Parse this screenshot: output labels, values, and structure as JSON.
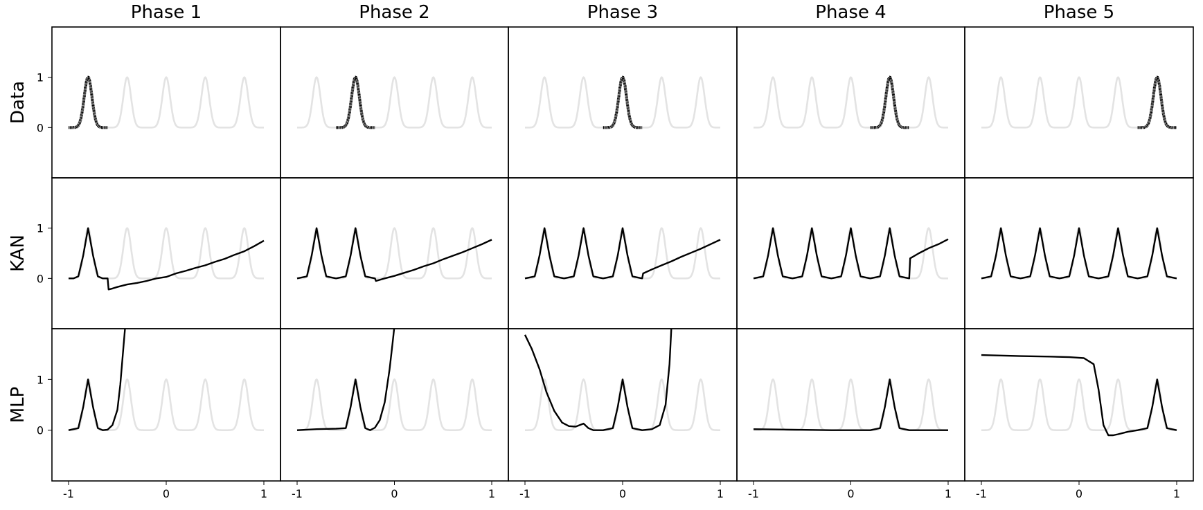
{
  "chart_data": {
    "type": "line",
    "columns": [
      "Phase 1",
      "Phase 2",
      "Phase 3",
      "Phase 4",
      "Phase 5"
    ],
    "rows": [
      "Data",
      "KAN",
      "MLP"
    ],
    "xlim": [
      -1,
      1
    ],
    "ylim": [
      -1,
      2
    ],
    "x_ticks": [
      -1,
      0,
      1
    ],
    "x_tick_labels": [
      "-1",
      "0",
      "1"
    ],
    "y_ticks": [
      0,
      1
    ],
    "y_tick_labels": [
      "0",
      "1"
    ],
    "peak_centers": [
      -0.8,
      -0.4,
      0.0,
      0.4,
      0.8
    ],
    "peak_width": 0.04,
    "colors": {
      "background_curve": "#e3e3e3",
      "foreground_curve": "#000000",
      "frame": "#000000"
    },
    "panels": [
      [
        {
          "style": "dots",
          "x": [
            -1.0,
            -0.95,
            -0.9,
            -0.85,
            -0.8,
            -0.75,
            -0.7,
            -0.65,
            -0.6
          ],
          "y": [
            0,
            0.0,
            0.04,
            0.46,
            1.0,
            0.46,
            0.04,
            0.0,
            0.0
          ]
        },
        {
          "style": "dots",
          "x": [
            -0.6,
            -0.55,
            -0.5,
            -0.45,
            -0.4,
            -0.35,
            -0.3,
            -0.25,
            -0.2
          ],
          "y": [
            0,
            0.0,
            0.04,
            0.46,
            1.0,
            0.46,
            0.04,
            0.0,
            0.0
          ]
        },
        {
          "style": "dots",
          "x": [
            -0.2,
            -0.15,
            -0.1,
            -0.05,
            0.0,
            0.05,
            0.1,
            0.15,
            0.2
          ],
          "y": [
            0,
            0.0,
            0.04,
            0.46,
            1.0,
            0.46,
            0.04,
            0.0,
            0.0
          ]
        },
        {
          "style": "dots",
          "x": [
            0.2,
            0.25,
            0.3,
            0.35,
            0.4,
            0.45,
            0.5,
            0.55,
            0.6
          ],
          "y": [
            0,
            0.0,
            0.04,
            0.46,
            1.0,
            0.46,
            0.04,
            0.0,
            0.0
          ]
        },
        {
          "style": "dots",
          "x": [
            0.6,
            0.65,
            0.7,
            0.75,
            0.8,
            0.85,
            0.9,
            0.95,
            1.0
          ],
          "y": [
            0,
            0.0,
            0.04,
            0.46,
            1.0,
            0.46,
            0.04,
            0.0,
            0.0
          ]
        }
      ],
      [
        {
          "style": "line",
          "x": [
            -1.0,
            -0.95,
            -0.9,
            -0.85,
            -0.8,
            -0.75,
            -0.7,
            -0.65,
            -0.6,
            -0.59,
            -0.55,
            -0.5,
            -0.4,
            -0.3,
            -0.2,
            -0.1,
            0.0,
            0.1,
            0.2,
            0.3,
            0.4,
            0.5,
            0.6,
            0.7,
            0.8,
            0.9,
            1.0
          ],
          "y": [
            0,
            0.0,
            0.04,
            0.46,
            1.0,
            0.46,
            0.04,
            0.0,
            0.0,
            -0.22,
            -0.2,
            -0.17,
            -0.12,
            -0.09,
            -0.05,
            0.0,
            0.03,
            0.1,
            0.15,
            0.21,
            0.26,
            0.33,
            0.39,
            0.47,
            0.54,
            0.64,
            0.75
          ]
        },
        {
          "style": "line",
          "x": [
            -1.0,
            -0.9,
            -0.85,
            -0.8,
            -0.75,
            -0.7,
            -0.6,
            -0.5,
            -0.45,
            -0.4,
            -0.35,
            -0.3,
            -0.2,
            -0.19,
            -0.1,
            0.0,
            0.1,
            0.2,
            0.3,
            0.4,
            0.5,
            0.6,
            0.7,
            0.8,
            0.9,
            1.0
          ],
          "y": [
            0,
            0.04,
            0.46,
            1.0,
            0.46,
            0.04,
            0.0,
            0.04,
            0.46,
            1.0,
            0.46,
            0.04,
            0.0,
            -0.05,
            0.0,
            0.05,
            0.11,
            0.17,
            0.24,
            0.3,
            0.38,
            0.45,
            0.52,
            0.6,
            0.68,
            0.77
          ]
        },
        {
          "style": "line",
          "x": [
            -1.0,
            -0.9,
            -0.85,
            -0.8,
            -0.75,
            -0.7,
            -0.6,
            -0.5,
            -0.45,
            -0.4,
            -0.35,
            -0.3,
            -0.2,
            -0.1,
            -0.05,
            0.0,
            0.05,
            0.1,
            0.2,
            0.21,
            0.3,
            0.4,
            0.5,
            0.6,
            0.7,
            0.8,
            0.9,
            1.0
          ],
          "y": [
            0,
            0.04,
            0.46,
            1.0,
            0.46,
            0.04,
            0.0,
            0.04,
            0.46,
            1.0,
            0.46,
            0.04,
            0.0,
            0.04,
            0.46,
            1.0,
            0.46,
            0.04,
            0.0,
            0.1,
            0.18,
            0.26,
            0.34,
            0.43,
            0.51,
            0.59,
            0.68,
            0.77
          ]
        },
        {
          "style": "line",
          "x": [
            -1.0,
            -0.9,
            -0.85,
            -0.8,
            -0.75,
            -0.7,
            -0.6,
            -0.5,
            -0.45,
            -0.4,
            -0.35,
            -0.3,
            -0.2,
            -0.1,
            -0.05,
            0.0,
            0.05,
            0.1,
            0.2,
            0.3,
            0.35,
            0.4,
            0.45,
            0.5,
            0.6,
            0.61,
            0.7,
            0.8,
            0.9,
            1.0
          ],
          "y": [
            0,
            0.04,
            0.46,
            1.0,
            0.46,
            0.04,
            0.0,
            0.04,
            0.46,
            1.0,
            0.46,
            0.04,
            0.0,
            0.04,
            0.46,
            1.0,
            0.46,
            0.04,
            0.0,
            0.04,
            0.46,
            1.0,
            0.46,
            0.04,
            0.0,
            0.4,
            0.5,
            0.6,
            0.68,
            0.78
          ]
        },
        {
          "style": "line",
          "x": [
            -1.0,
            -0.9,
            -0.85,
            -0.8,
            -0.75,
            -0.7,
            -0.6,
            -0.5,
            -0.45,
            -0.4,
            -0.35,
            -0.3,
            -0.2,
            -0.1,
            -0.05,
            0.0,
            0.05,
            0.1,
            0.2,
            0.3,
            0.35,
            0.4,
            0.45,
            0.5,
            0.6,
            0.7,
            0.75,
            0.8,
            0.85,
            0.9,
            1.0
          ],
          "y": [
            0,
            0.04,
            0.46,
            1.0,
            0.46,
            0.04,
            0.0,
            0.04,
            0.46,
            1.0,
            0.46,
            0.04,
            0.0,
            0.04,
            0.46,
            1.0,
            0.46,
            0.04,
            0.0,
            0.04,
            0.46,
            1.0,
            0.46,
            0.04,
            0.0,
            0.04,
            0.46,
            1.0,
            0.46,
            0.04,
            0.0
          ]
        }
      ],
      [
        {
          "style": "line",
          "x": [
            -1.0,
            -0.9,
            -0.85,
            -0.8,
            -0.75,
            -0.7,
            -0.65,
            -0.6,
            -0.55,
            -0.5,
            -0.47,
            -0.44,
            -0.42
          ],
          "y": [
            0,
            0.04,
            0.46,
            1.0,
            0.46,
            0.04,
            0.0,
            0.01,
            0.1,
            0.4,
            0.9,
            1.6,
            2.05
          ]
        },
        {
          "style": "line",
          "x": [
            -1.0,
            -0.8,
            -0.6,
            -0.5,
            -0.45,
            -0.4,
            -0.35,
            -0.3,
            -0.25,
            -0.2,
            -0.15,
            -0.1,
            -0.05,
            -0.02,
            0.0
          ],
          "y": [
            0.0,
            0.02,
            0.03,
            0.04,
            0.46,
            1.0,
            0.46,
            0.04,
            0.0,
            0.05,
            0.2,
            0.55,
            1.2,
            1.7,
            2.05
          ]
        },
        {
          "style": "line",
          "x": [
            -1.0,
            -0.93,
            -0.85,
            -0.78,
            -0.7,
            -0.62,
            -0.55,
            -0.48,
            -0.4,
            -0.35,
            -0.3,
            -0.2,
            -0.1,
            -0.05,
            0.0,
            0.05,
            0.1,
            0.2,
            0.3,
            0.38,
            0.44,
            0.48,
            0.5
          ],
          "y": [
            1.88,
            1.6,
            1.2,
            0.75,
            0.38,
            0.15,
            0.08,
            0.07,
            0.13,
            0.04,
            0.0,
            0.0,
            0.04,
            0.46,
            1.0,
            0.46,
            0.04,
            0.0,
            0.02,
            0.1,
            0.5,
            1.3,
            2.05
          ]
        },
        {
          "style": "line",
          "x": [
            -1.0,
            -0.6,
            -0.2,
            0.2,
            0.3,
            0.35,
            0.4,
            0.45,
            0.5,
            0.6,
            0.8,
            1.0
          ],
          "y": [
            0.02,
            0.01,
            0.0,
            0.0,
            0.04,
            0.46,
            1.0,
            0.46,
            0.04,
            0.0,
            0.0,
            0.0
          ]
        },
        {
          "style": "line",
          "x": [
            -1.0,
            -0.6,
            -0.3,
            -0.1,
            0.05,
            0.15,
            0.2,
            0.25,
            0.3,
            0.35,
            0.4,
            0.5,
            0.6,
            0.7,
            0.75,
            0.8,
            0.85,
            0.9,
            1.0
          ],
          "y": [
            1.48,
            1.46,
            1.45,
            1.44,
            1.42,
            1.3,
            0.8,
            0.1,
            -0.1,
            -0.1,
            -0.08,
            -0.03,
            0.0,
            0.04,
            0.46,
            1.0,
            0.46,
            0.04,
            0.0
          ]
        }
      ]
    ]
  }
}
